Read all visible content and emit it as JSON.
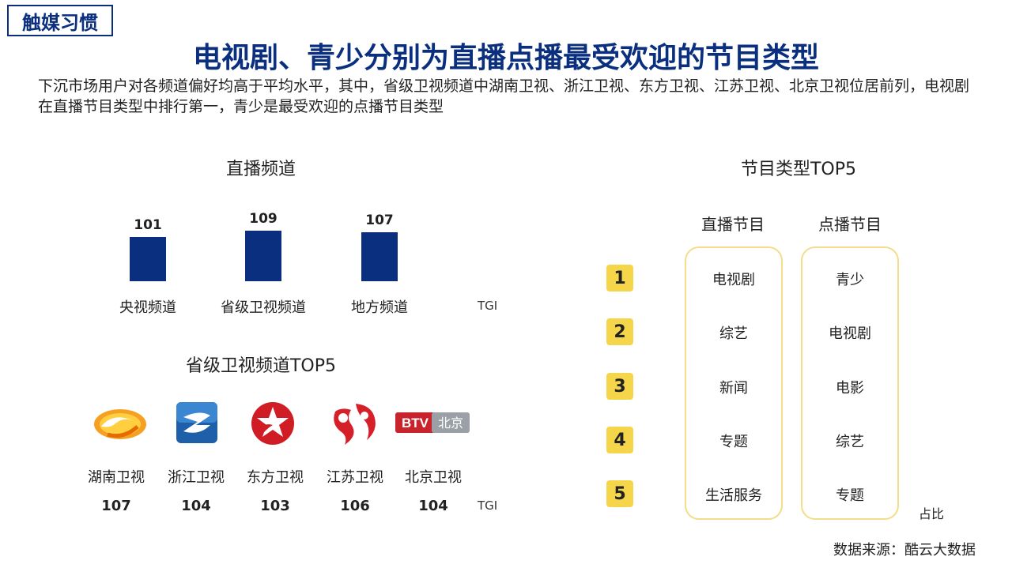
{
  "tag": "触媒习惯",
  "title": "电视剧、青少分别为直播点播最受欢迎的节目类型",
  "description": "下沉市场用户对各频道偏好均高于平均水平，其中，省级卫视频道中湖南卫视、浙江卫视、东方卫视、江苏卫视、北京卫视位居前列，电视剧在直播节目类型中排行第一，青少是最受欢迎的点播节目类型",
  "live_channels": {
    "title": "直播频道",
    "unit": "TGI",
    "chart_data": {
      "type": "bar",
      "title": "直播频道",
      "categories": [
        "央视频道",
        "省级卫视频道",
        "地方频道"
      ],
      "values": [
        101,
        109,
        107
      ],
      "ylabel": "TGI"
    }
  },
  "provincial_top5": {
    "title": "省级卫视频道TOP5",
    "unit": "TGI",
    "items": [
      {
        "name": "湖南卫视",
        "value": "107",
        "icon": "hunan-tv-logo"
      },
      {
        "name": "浙江卫视",
        "value": "104",
        "icon": "zhejiang-tv-logo"
      },
      {
        "name": "东方卫视",
        "value": "103",
        "icon": "dragon-tv-logo"
      },
      {
        "name": "江苏卫视",
        "value": "106",
        "icon": "jiangsu-tv-logo"
      },
      {
        "name": "北京卫视",
        "value": "104",
        "icon": "btv-logo"
      }
    ],
    "btv_logo_text": "BTV北京"
  },
  "program_types": {
    "title": "节目类型TOP5",
    "live_header": "直播节目",
    "vod_header": "点播节目",
    "ranks": [
      "1",
      "2",
      "3",
      "4",
      "5"
    ],
    "live": [
      "电视剧",
      "综艺",
      "新闻",
      "专题",
      "生活服务"
    ],
    "vod": [
      "青少",
      "电视剧",
      "电影",
      "综艺",
      "专题"
    ],
    "note": "占比"
  },
  "source": "数据来源：酷云大数据",
  "colors": {
    "primary": "#0b2f7f",
    "accent": "#f5d64a",
    "box_border": "#f3dc8a"
  }
}
